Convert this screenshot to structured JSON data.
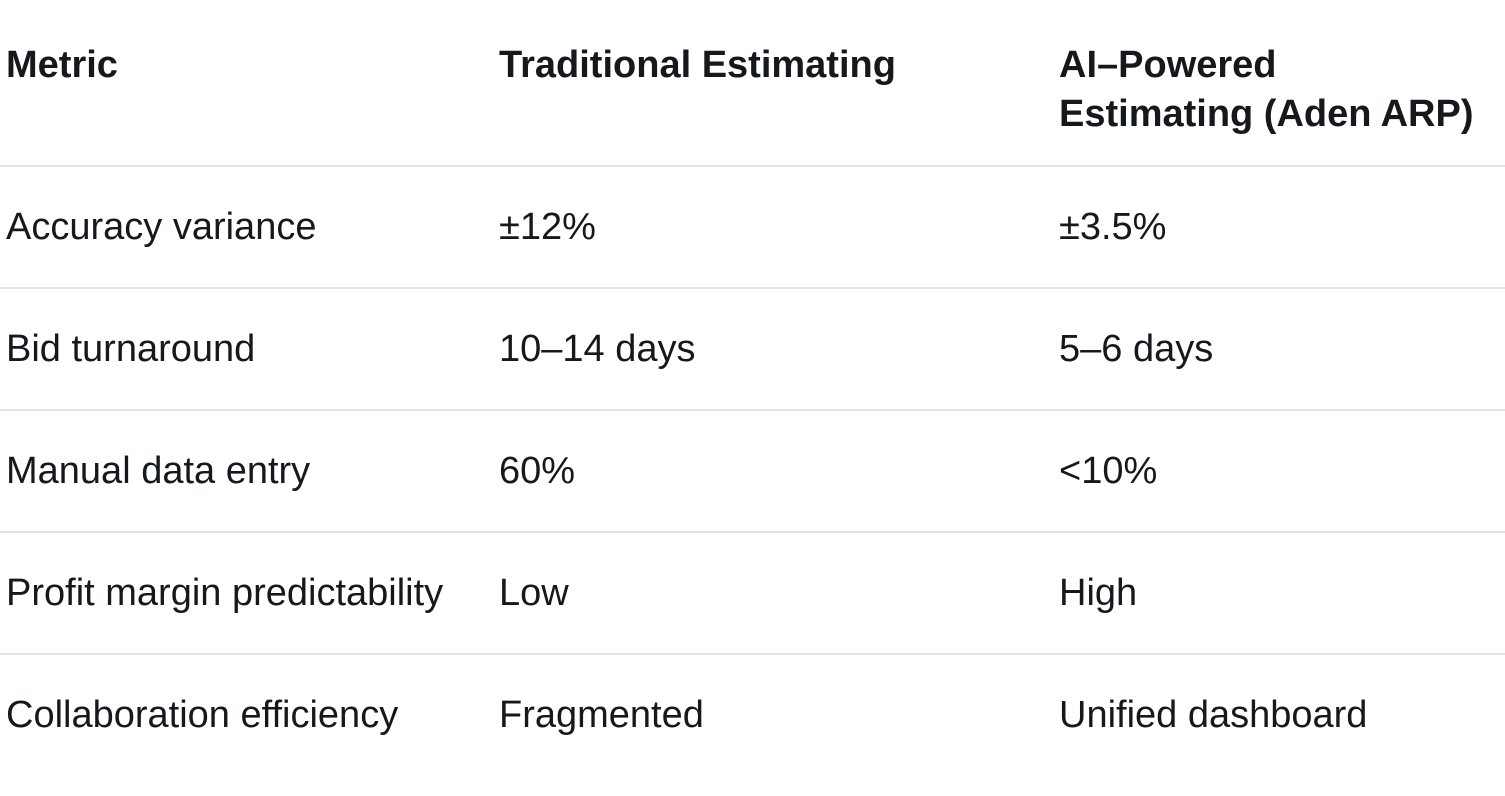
{
  "table": {
    "header": {
      "metric": "Metric",
      "traditional": "Traditional Estimating",
      "ai_line1": "AI–Powered",
      "ai_line2": "Estimating (Aden ARP)",
      "ai_full": "AI–Powered Estimating (Aden ARP)"
    },
    "rows": [
      {
        "metric": "Accuracy variance",
        "traditional": "±12%",
        "ai": "±3.5%"
      },
      {
        "metric": "Bid turnaround",
        "traditional": "10–14 days",
        "ai": "5–6 days"
      },
      {
        "metric": "Manual data entry",
        "traditional": "60%",
        "ai": "<10%"
      },
      {
        "metric": "Profit margin predictability",
        "traditional": "Low",
        "ai": "High"
      },
      {
        "metric": "Collaboration efficiency",
        "traditional": "Fragmented",
        "ai": "Unified dashboard"
      }
    ]
  },
  "colors": {
    "background": "#ffffff",
    "text": "#15181c",
    "divider": "#e3e4e6"
  }
}
